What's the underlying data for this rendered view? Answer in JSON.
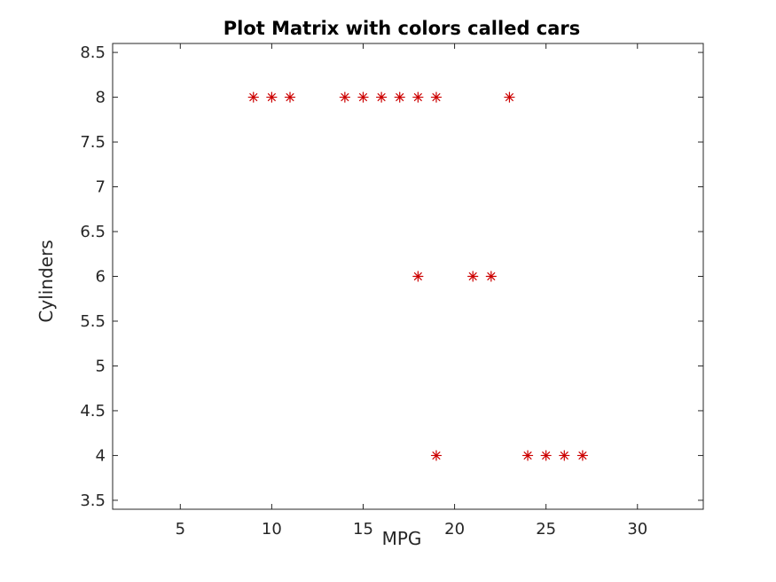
{
  "chart_data": {
    "type": "scatter",
    "title": "Plot Matrix with colors called cars",
    "xlabel": "MPG",
    "ylabel": "Cylinders",
    "xlim": [
      1.3,
      33.6
    ],
    "ylim": [
      3.4,
      8.6
    ],
    "xticks": [
      5,
      10,
      15,
      20,
      25,
      30
    ],
    "yticks": [
      3.5,
      4,
      4.5,
      5,
      5.5,
      6,
      6.5,
      7,
      7.5,
      8,
      8.5
    ],
    "grid": false,
    "marker": "asterisk",
    "marker_color": "#cc0000",
    "series": [
      {
        "points": [
          {
            "x": 9,
            "y": 8
          },
          {
            "x": 10,
            "y": 8
          },
          {
            "x": 11,
            "y": 8
          },
          {
            "x": 14,
            "y": 8
          },
          {
            "x": 15,
            "y": 8
          },
          {
            "x": 16,
            "y": 8
          },
          {
            "x": 17,
            "y": 8
          },
          {
            "x": 18,
            "y": 8
          },
          {
            "x": 19,
            "y": 8
          },
          {
            "x": 23,
            "y": 8
          },
          {
            "x": 18,
            "y": 6
          },
          {
            "x": 21,
            "y": 6
          },
          {
            "x": 22,
            "y": 6
          },
          {
            "x": 19,
            "y": 4
          },
          {
            "x": 24,
            "y": 4
          },
          {
            "x": 25,
            "y": 4
          },
          {
            "x": 26,
            "y": 4
          },
          {
            "x": 27,
            "y": 4
          }
        ]
      }
    ]
  }
}
